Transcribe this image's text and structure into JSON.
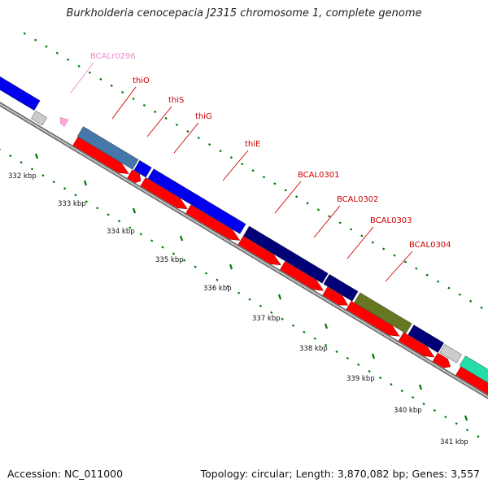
{
  "title": "Burkholderia cenocepacia J2315 chromosome 1, complete genome",
  "footer": {
    "accession": "Accession: NC_011000",
    "summary": "Topology: circular; Length: 3,870,082 bp; Genes: 3,557"
  },
  "colors": {
    "gene_label": "#cc0000",
    "rna_label": "#ee88cc",
    "cds_arrow": "#ff0000",
    "tick": "#007700",
    "backbone": "#888888",
    "rrna": "#ffaadd",
    "unknown": "#cccccc"
  },
  "gene_labels": [
    {
      "name": "BCALr0296",
      "kind": "rna"
    },
    {
      "name": "thiO",
      "kind": "gene"
    },
    {
      "name": "thiS",
      "kind": "gene"
    },
    {
      "name": "thiG",
      "kind": "gene"
    },
    {
      "name": "thiE",
      "kind": "gene"
    },
    {
      "name": "BCAL0301",
      "kind": "gene"
    },
    {
      "name": "BCAL0302",
      "kind": "gene"
    },
    {
      "name": "BCAL0303",
      "kind": "gene"
    },
    {
      "name": "BCAL0304",
      "kind": "gene"
    }
  ],
  "cog_blocks": [
    {
      "gene": "prev",
      "color": "#0000ee"
    },
    {
      "gene": "thiO",
      "color": "#4477aa"
    },
    {
      "gene": "thiS",
      "color": "#0000ee"
    },
    {
      "gene": "thiG",
      "color": "#0000ee"
    },
    {
      "gene": "BCAL0301",
      "color": "#000077"
    },
    {
      "gene": "BCAL0302",
      "color": "#000077"
    },
    {
      "gene": "BCAL0303",
      "color": "#667722"
    },
    {
      "gene": "BCAL0304",
      "color": "#000077"
    },
    {
      "gene": "next",
      "color": "#22ddaa"
    }
  ],
  "scale": {
    "unit": "kbp",
    "ticks": [
      "332 kbp",
      "333 kbp",
      "334 kbp",
      "335 kbp",
      "336 kbp",
      "337 kbp",
      "338 kbp",
      "339 kbp",
      "340 kbp",
      "341 kbp"
    ]
  }
}
